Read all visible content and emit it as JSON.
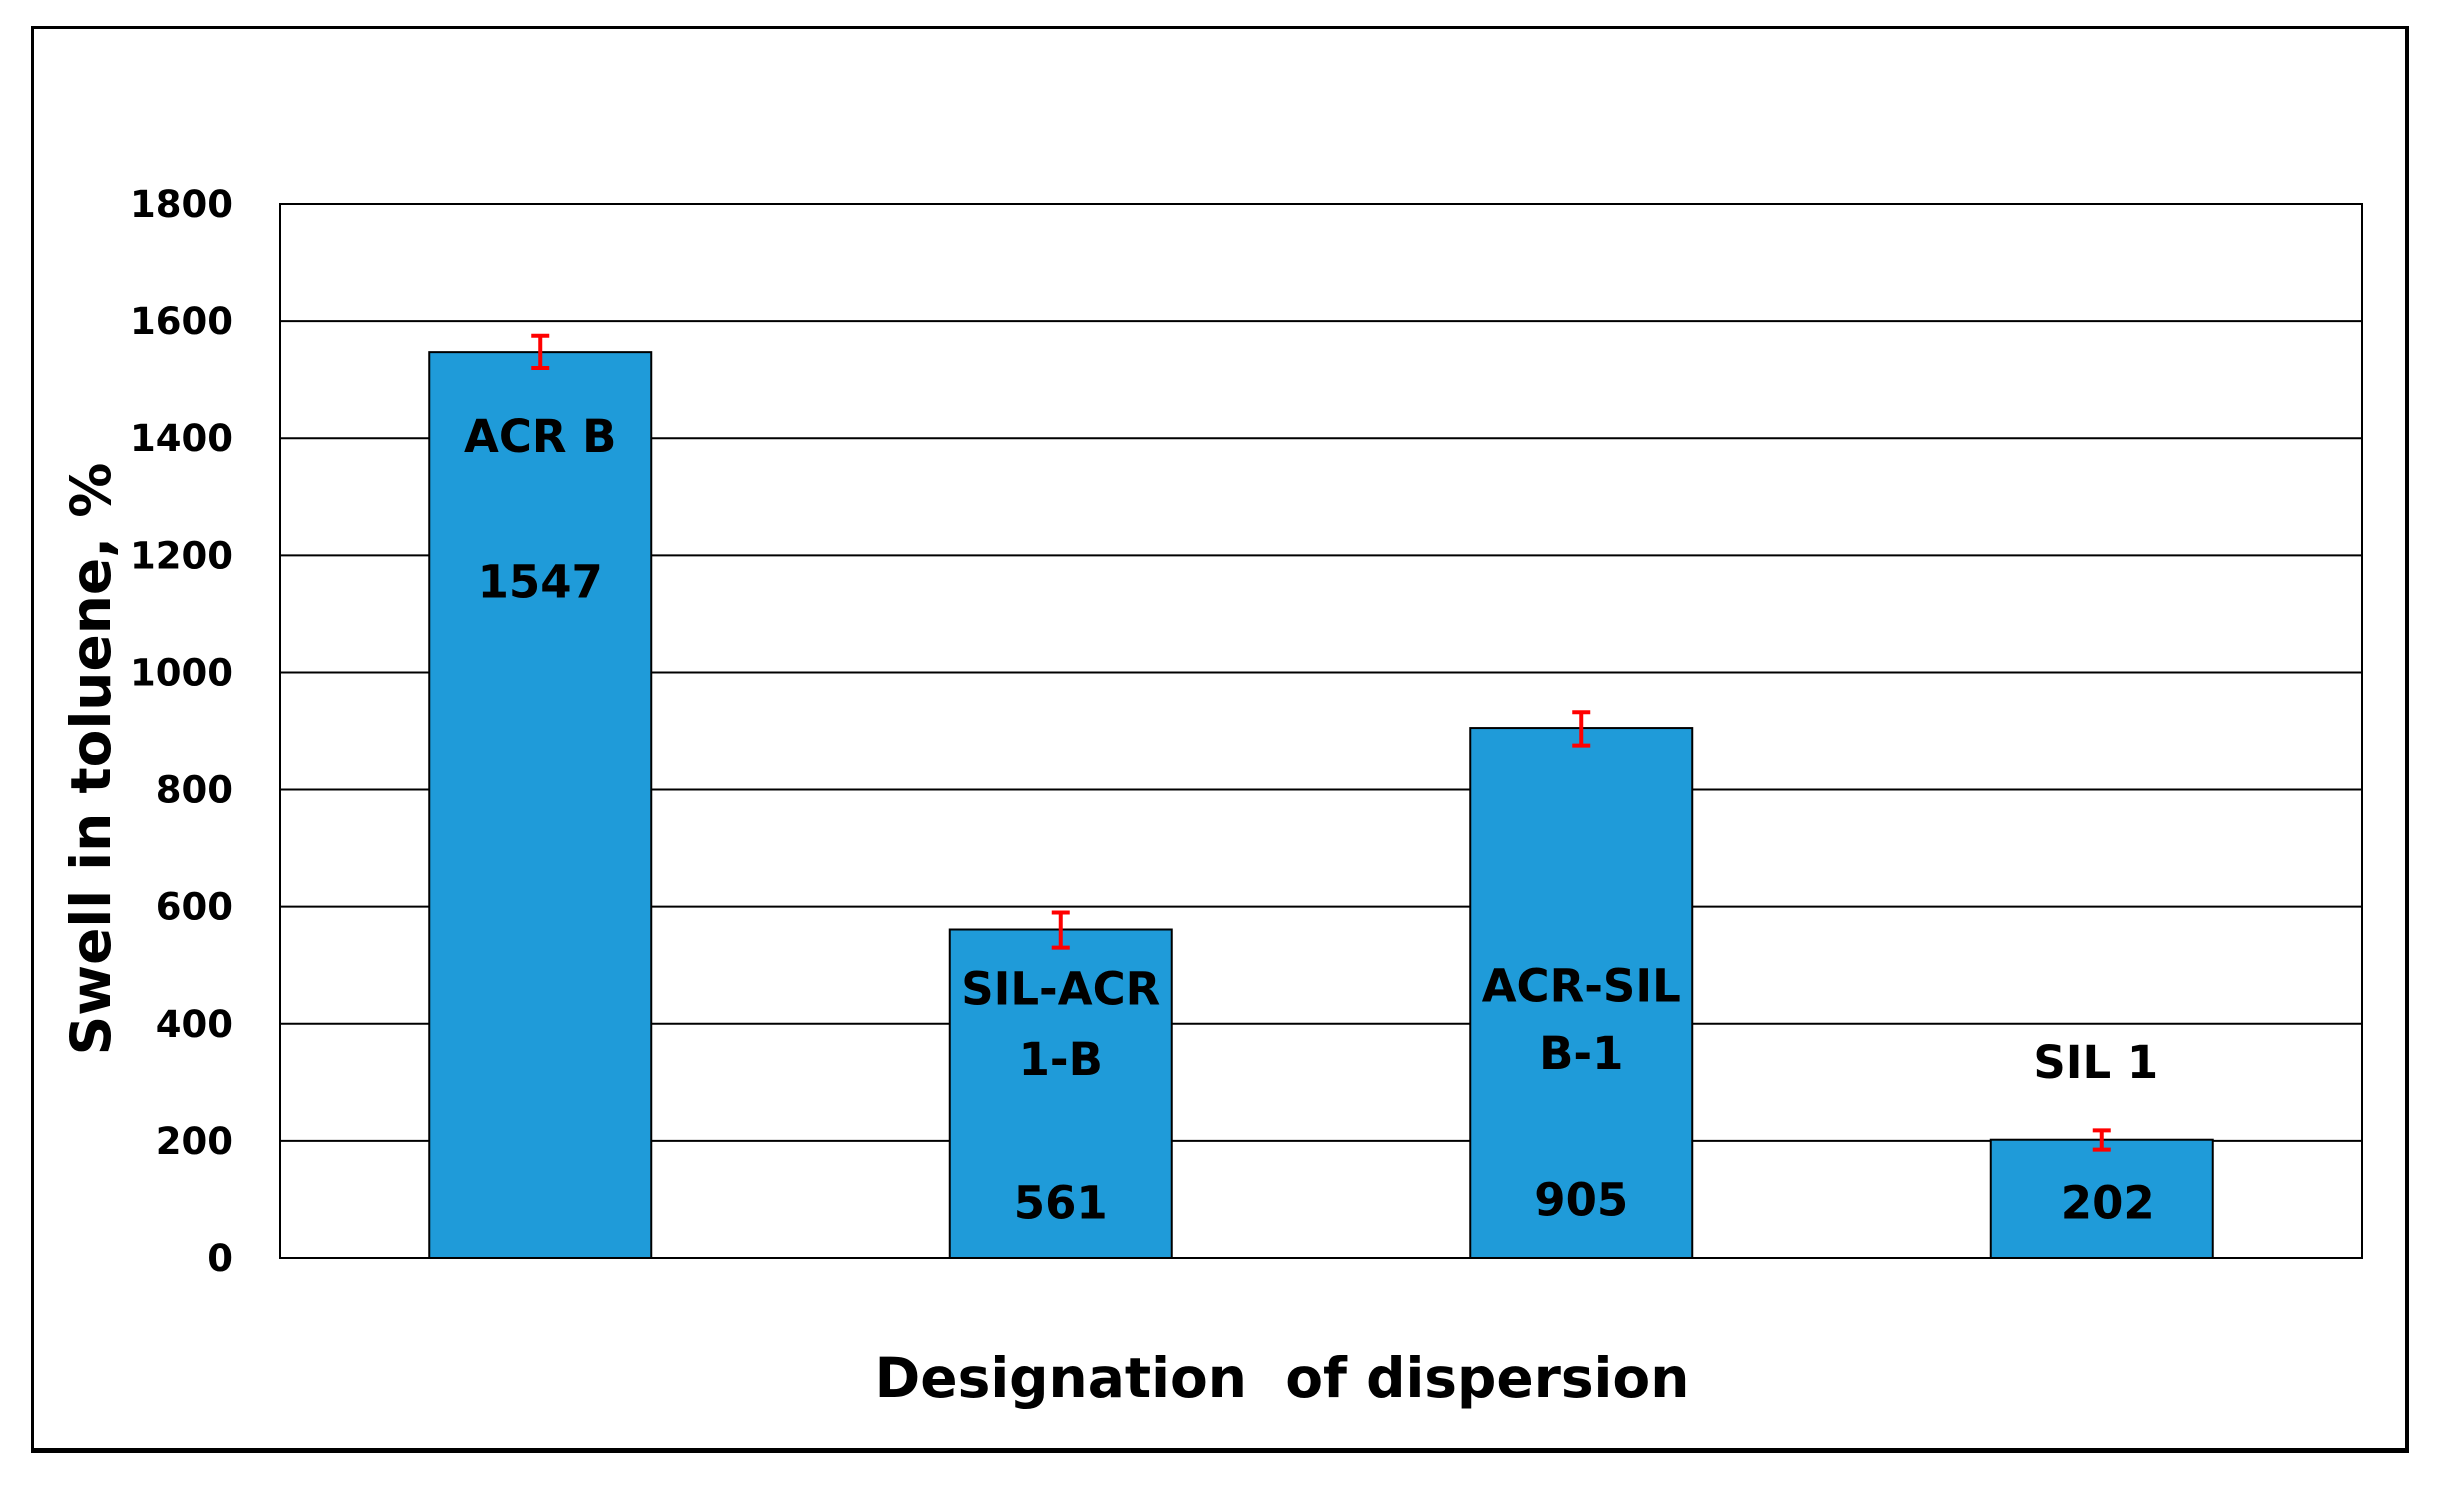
{
  "chart_data": {
    "type": "bar",
    "title": "",
    "xlabel": "Designation  of dispersion",
    "ylabel": "Swell in toluene, %",
    "ylim": [
      0,
      1800
    ],
    "yticks": [
      0,
      200,
      400,
      600,
      800,
      1000,
      1200,
      1400,
      1600,
      1800
    ],
    "grid": true,
    "bar_color": "#1f9bd9",
    "error_bar_color": "#ff0000",
    "categories": [
      "ACR B",
      "SIL-ACR 1-B",
      "ACR-SIL B-1",
      "SIL 1"
    ],
    "category_label_lines": [
      [
        "ACR B"
      ],
      [
        "SIL-ACR",
        "1-B"
      ],
      [
        "ACR-SIL",
        "B-1"
      ],
      [
        "SIL 1"
      ]
    ],
    "value_labels": [
      "1547",
      "561",
      "905",
      "202"
    ],
    "values": [
      1547,
      561,
      905,
      202
    ],
    "errors": [
      {
        "low": 1520,
        "high": 1575
      },
      {
        "low": 530,
        "high": 590
      },
      {
        "low": 875,
        "high": 932
      },
      {
        "low": 185,
        "high": 218
      }
    ]
  }
}
